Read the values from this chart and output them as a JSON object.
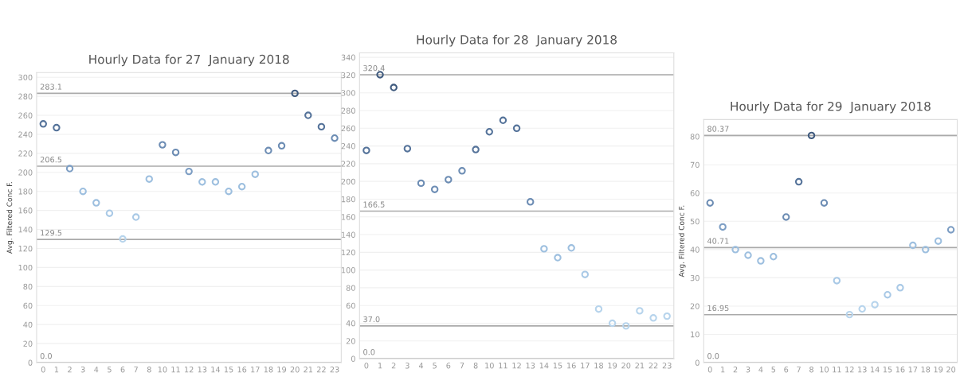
{
  "chart_data": [
    {
      "type": "scatter",
      "title": "Hourly Data for 27  January 2018",
      "ylabel": "Avg. Filtered Conc F.",
      "categories": [
        "0",
        "1",
        "2",
        "3",
        "4",
        "5",
        "6",
        "7",
        "8",
        "10",
        "11",
        "12",
        "13",
        "14",
        "15",
        "16",
        "17",
        "18",
        "19",
        "20",
        "21",
        "22",
        "23"
      ],
      "values": [
        251,
        247,
        204,
        180,
        168,
        157,
        130,
        153,
        193,
        229,
        221,
        201,
        190,
        190,
        180,
        185,
        198,
        223,
        228,
        283.1,
        260,
        248,
        236
      ],
      "colors": [
        "#55739a",
        "#55739a",
        "#7d9ec4",
        "#9dbfdf",
        "#9dbfdf",
        "#a9c9e6",
        "#b7d4ec",
        "#a9c9e6",
        "#9dbfdf",
        "#6d8db4",
        "#6d8db4",
        "#7d9ec4",
        "#9dbfdf",
        "#9dbfdf",
        "#9dbfdf",
        "#9dbfdf",
        "#9dbfdf",
        "#6d8db4",
        "#6d8db4",
        "#3f5a7e",
        "#55739a",
        "#55739a",
        "#6d8db4"
      ],
      "ylim": [
        0,
        305
      ],
      "yticks": [
        0,
        20,
        40,
        60,
        80,
        100,
        120,
        140,
        160,
        180,
        200,
        220,
        240,
        260,
        280,
        300
      ],
      "grid": "y",
      "marker": "circle",
      "ref_lines": [
        {
          "axis": "y",
          "value": 283.1,
          "label": "283.1"
        },
        {
          "axis": "y",
          "value": 206.5,
          "label": "206.5"
        },
        {
          "axis": "y",
          "value": 129.5,
          "label": "129.5"
        },
        {
          "axis": "y",
          "value": 0,
          "label": "0.0"
        }
      ]
    },
    {
      "type": "scatter",
      "title": "Hourly Data for 28  January 2018",
      "categories": [
        "0",
        "1",
        "2",
        "3",
        "4",
        "5",
        "6",
        "7",
        "8",
        "10",
        "11",
        "12",
        "13",
        "14",
        "15",
        "16",
        "17",
        "18",
        "19",
        "20",
        "21",
        "22",
        "23"
      ],
      "values": [
        235,
        320.4,
        306,
        237,
        198,
        191,
        202,
        212,
        236,
        256,
        269,
        260,
        177,
        124,
        114,
        125,
        95,
        56,
        40,
        37,
        54,
        46,
        48
      ],
      "colors": [
        "#55739a",
        "#3f5a7e",
        "#3f5a7e",
        "#55739a",
        "#6d8db4",
        "#6d8db4",
        "#6d8db4",
        "#6d8db4",
        "#55739a",
        "#55739a",
        "#55739a",
        "#55739a",
        "#6d8db4",
        "#9dbfdf",
        "#9dbfdf",
        "#9dbfdf",
        "#a9c9e6",
        "#b7d4ec",
        "#b7d4ec",
        "#b7d4ec",
        "#b7d4ec",
        "#b7d4ec",
        "#b7d4ec"
      ],
      "ylim": [
        0,
        345
      ],
      "yticks": [
        0,
        20,
        40,
        60,
        80,
        100,
        120,
        140,
        160,
        180,
        200,
        220,
        240,
        260,
        280,
        300,
        320,
        340
      ],
      "grid": "y",
      "marker": "circle",
      "ref_lines": [
        {
          "axis": "y",
          "value": 320.4,
          "label": "320.4"
        },
        {
          "axis": "y",
          "value": 166.5,
          "label": "166.5"
        },
        {
          "axis": "y",
          "value": 37.0,
          "label": "37.0"
        },
        {
          "axis": "y",
          "value": 0,
          "label": "0.0"
        }
      ]
    },
    {
      "type": "scatter",
      "title": "Hourly Data for 29  January 2018",
      "ylabel": "Avg. Filtered Conc F.",
      "categories": [
        "0",
        "1",
        "2",
        "3",
        "4",
        "5",
        "6",
        "7",
        "8",
        "10",
        "11",
        "12",
        "13",
        "14",
        "15",
        "16",
        "17",
        "18",
        "19",
        "20"
      ],
      "values": [
        56.5,
        48,
        40,
        38,
        36,
        37.5,
        51.5,
        64,
        80.37,
        56.5,
        29,
        17,
        19,
        20.5,
        24,
        26.5,
        41.5,
        40,
        43,
        47
      ],
      "colors": [
        "#6d8db4",
        "#7d9ec4",
        "#9dbfdf",
        "#9dbfdf",
        "#9dbfdf",
        "#9dbfdf",
        "#6d8db4",
        "#55739a",
        "#3f5a7e",
        "#6d8db4",
        "#a9c9e6",
        "#b7d4ec",
        "#b7d4ec",
        "#b7d4ec",
        "#a9c9e6",
        "#a9c9e6",
        "#9dbfdf",
        "#9dbfdf",
        "#9dbfdf",
        "#7d9ec4"
      ],
      "ylim": [
        0,
        86
      ],
      "yticks": [
        0,
        10,
        20,
        30,
        40,
        50,
        60,
        70,
        80
      ],
      "grid": "y",
      "marker": "circle",
      "ref_lines": [
        {
          "axis": "y",
          "value": 80.37,
          "label": "80.37"
        },
        {
          "axis": "y",
          "value": 40.71,
          "label": "40.71"
        },
        {
          "axis": "y",
          "value": 16.95,
          "label": "16.95"
        },
        {
          "axis": "y",
          "value": 0,
          "label": "0.0"
        }
      ]
    }
  ]
}
